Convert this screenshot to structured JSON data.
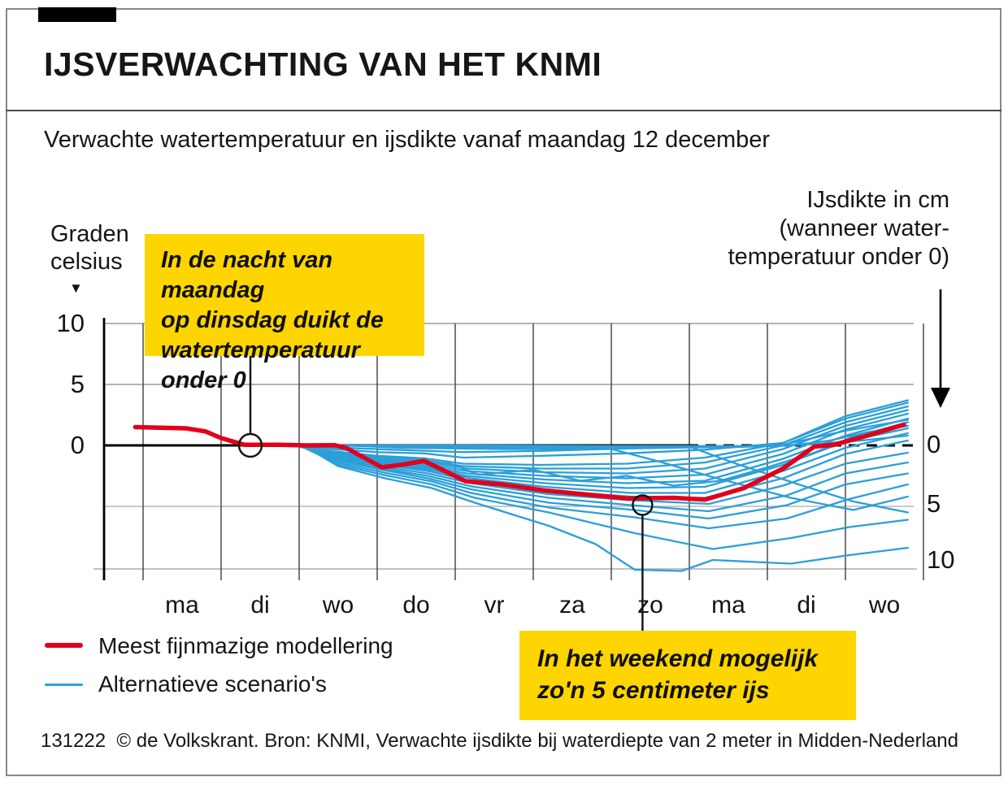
{
  "header": {
    "title": "IJSVERWACHTING VAN HET KNMI"
  },
  "subtitle": "Verwachte watertemperatuur en ijsdikte vanaf maandag 12 december",
  "axis_labels": {
    "left_lines": [
      "Graden",
      "celsius"
    ],
    "left_marker": "▼",
    "right_lines": [
      "IJsdikte in cm",
      "(wanneer water-",
      "temperatuur onder 0)"
    ]
  },
  "annotations": [
    {
      "lines": [
        "In de nacht van maandag",
        "op dinsdag duikt de",
        "watertemperatuur onder 0"
      ]
    },
    {
      "lines": [
        "In het weekend mogelijk",
        "zo'n 5 centimeter ijs"
      ]
    }
  ],
  "legend": [
    {
      "label": "Meest fijnmazige modellering",
      "color": "#e2001a"
    },
    {
      "label": "Alternatieve scenario's",
      "color": "#2b9fd9"
    }
  ],
  "footer": "131222  © de Volkskrant. Bron: KNMI, Verwachte ijsdikte bij waterdiepte van 2 meter in Midden-Nederland",
  "colors": {
    "accent_yellow": "#ffd500",
    "red": "#e2001a",
    "blue": "#2b9fd9"
  },
  "chart_data": {
    "type": "line",
    "x_unit": "dagen vanaf maandag 12 december",
    "day_labels": [
      "ma",
      "di",
      "wo",
      "do",
      "vr",
      "za",
      "zo",
      "ma",
      "di",
      "wo"
    ],
    "y_left_ticks": [
      "10",
      "5",
      "0"
    ],
    "y_right_ticks": [
      "0",
      "5",
      "10"
    ],
    "y_left_unit": "graden celsius boven de nullijn",
    "y_right_unit": "cm ijsdikte onder de nullijn",
    "main_series": {
      "name": "Meest fijnmazige modellering",
      "points": [
        [
          -0.1,
          1.5
        ],
        [
          0.55,
          1.4
        ],
        [
          0.8,
          1.15
        ],
        [
          1.0,
          0.6
        ],
        [
          1.3,
          0.05
        ],
        [
          1.75,
          0.05
        ],
        [
          2.1,
          0.0
        ],
        [
          2.45,
          0.02
        ],
        [
          2.6,
          -0.2
        ],
        [
          3.06,
          -1.8
        ],
        [
          3.35,
          -1.55
        ],
        [
          3.6,
          -1.27
        ],
        [
          4.13,
          -2.93
        ],
        [
          4.6,
          -3.2
        ],
        [
          5.15,
          -3.7
        ],
        [
          5.8,
          -4.1
        ],
        [
          6.2,
          -4.35
        ],
        [
          6.8,
          -4.3
        ],
        [
          7.2,
          -4.45
        ],
        [
          7.7,
          -3.5
        ],
        [
          8.2,
          -1.9
        ],
        [
          8.6,
          -0.1
        ],
        [
          8.85,
          0.05
        ],
        [
          9.25,
          0.75
        ],
        [
          9.75,
          1.7
        ]
      ]
    },
    "scenarios": [
      [
        [
          1.9,
          0
        ],
        [
          4,
          -0.05
        ],
        [
          6,
          -0.1
        ],
        [
          7.5,
          -0.15
        ],
        [
          8.3,
          0
        ],
        [
          8.8,
          0.4
        ],
        [
          9.3,
          1.1
        ],
        [
          9.8,
          1.6
        ]
      ],
      [
        [
          2.0,
          0
        ],
        [
          4,
          0
        ],
        [
          6,
          -0.05
        ],
        [
          8,
          -0.05
        ],
        [
          8.6,
          0.1
        ],
        [
          9.2,
          0.4
        ],
        [
          9.8,
          0.8
        ]
      ],
      [
        [
          1.95,
          0
        ],
        [
          2.4,
          -0.15
        ],
        [
          3.2,
          -0.35
        ],
        [
          4.1,
          -0.55
        ],
        [
          5.1,
          -0.45
        ],
        [
          6.2,
          -0.25
        ],
        [
          7.2,
          -0.15
        ],
        [
          8.2,
          0.05
        ],
        [
          9,
          1.2
        ],
        [
          9.8,
          2.1
        ]
      ],
      [
        [
          1.95,
          0
        ],
        [
          2.3,
          -0.25
        ],
        [
          3,
          -0.55
        ],
        [
          3.6,
          -0.65
        ],
        [
          4.1,
          -1.0
        ],
        [
          5.1,
          -0.85
        ],
        [
          6.2,
          -0.65
        ],
        [
          7.2,
          -0.35
        ],
        [
          8.2,
          0.2
        ],
        [
          9,
          2.4
        ],
        [
          9.8,
          3.7
        ]
      ],
      [
        [
          1.95,
          0
        ],
        [
          2.3,
          -0.4
        ],
        [
          3,
          -0.85
        ],
        [
          3.6,
          -1.05
        ],
        [
          4.1,
          -1.5
        ],
        [
          5.1,
          -1.6
        ],
        [
          6.2,
          -1.5
        ],
        [
          7.2,
          -1.0
        ],
        [
          8.2,
          0.2
        ],
        [
          9,
          2.2
        ],
        [
          9.8,
          3.5
        ]
      ],
      [
        [
          1.95,
          0
        ],
        [
          2.3,
          -0.45
        ],
        [
          3,
          -0.95
        ],
        [
          3.6,
          -1.2
        ],
        [
          4.1,
          -1.7
        ],
        [
          5.1,
          -1.9
        ],
        [
          6.2,
          -1.9
        ],
        [
          7.2,
          -1.4
        ],
        [
          8.2,
          0.0
        ],
        [
          9,
          1.9
        ],
        [
          9.8,
          3.2
        ]
      ],
      [
        [
          1.95,
          0
        ],
        [
          2.3,
          -0.5
        ],
        [
          3,
          -1.05
        ],
        [
          3.6,
          -1.35
        ],
        [
          4.15,
          -1.9
        ],
        [
          5.15,
          -2.2
        ],
        [
          6.2,
          -2.3
        ],
        [
          7.2,
          -1.9
        ],
        [
          8.2,
          -0.3
        ],
        [
          9,
          1.6
        ],
        [
          9.8,
          2.9
        ]
      ],
      [
        [
          1.95,
          0
        ],
        [
          2.3,
          -0.55
        ],
        [
          3,
          -1.15
        ],
        [
          3.6,
          -1.5
        ],
        [
          4.15,
          -2.1
        ],
        [
          5.15,
          -2.5
        ],
        [
          6.2,
          -2.7
        ],
        [
          7.2,
          -2.4
        ],
        [
          8.2,
          -0.7
        ],
        [
          9,
          1.3
        ],
        [
          9.8,
          2.6
        ]
      ],
      [
        [
          1.95,
          0
        ],
        [
          2.35,
          -0.65
        ],
        [
          3,
          -1.25
        ],
        [
          3.6,
          -1.65
        ],
        [
          4.15,
          -2.3
        ],
        [
          5.15,
          -2.8
        ],
        [
          6.2,
          -3.1
        ],
        [
          7.2,
          -2.9
        ],
        [
          8.2,
          -1.1
        ],
        [
          9,
          0.8
        ],
        [
          9.8,
          2.2
        ]
      ],
      [
        [
          1.95,
          0
        ],
        [
          2.35,
          -0.7
        ],
        [
          3,
          -1.35
        ],
        [
          3.65,
          -1.8
        ],
        [
          4.15,
          -2.5
        ],
        [
          5.15,
          -3.1
        ],
        [
          6.2,
          -3.5
        ],
        [
          7.2,
          -3.4
        ],
        [
          8.2,
          -1.6
        ],
        [
          9,
          0.3
        ],
        [
          9.8,
          1.4
        ]
      ],
      [
        [
          2.0,
          0
        ],
        [
          2.4,
          -0.8
        ],
        [
          3.05,
          -1.45
        ],
        [
          3.65,
          -1.95
        ],
        [
          4.2,
          -2.7
        ],
        [
          5.15,
          -3.4
        ],
        [
          6.25,
          -3.9
        ],
        [
          7.2,
          -3.9
        ],
        [
          8.2,
          -2.1
        ],
        [
          9,
          -0.2
        ],
        [
          9.8,
          1.0
        ]
      ],
      [
        [
          2.0,
          0
        ],
        [
          2.4,
          -0.9
        ],
        [
          3.05,
          -1.6
        ],
        [
          3.65,
          -2.1
        ],
        [
          4.2,
          -2.9
        ],
        [
          5.15,
          -3.7
        ],
        [
          6.25,
          -4.2
        ],
        [
          7.2,
          -4.3
        ],
        [
          8.2,
          -2.7
        ],
        [
          9,
          -0.7
        ],
        [
          9.8,
          0.4
        ]
      ],
      [
        [
          2.0,
          0
        ],
        [
          2.4,
          -1.0
        ],
        [
          3.05,
          -1.75
        ],
        [
          3.65,
          -2.3
        ],
        [
          4.2,
          -3.1
        ],
        [
          5.2,
          -4.0
        ],
        [
          6.25,
          -4.5
        ],
        [
          7.25,
          -4.8
        ],
        [
          8.2,
          -3.3
        ],
        [
          9,
          -1.5
        ],
        [
          9.8,
          -0.6
        ]
      ],
      [
        [
          2.0,
          0
        ],
        [
          2.4,
          -1.1
        ],
        [
          3.05,
          -1.9
        ],
        [
          3.65,
          -2.5
        ],
        [
          4.2,
          -3.35
        ],
        [
          5.2,
          -4.3
        ],
        [
          6.25,
          -4.9
        ],
        [
          7.25,
          -5.4
        ],
        [
          8.25,
          -4.1
        ],
        [
          9,
          -2.3
        ],
        [
          9.8,
          -1.4
        ]
      ],
      [
        [
          2.0,
          0
        ],
        [
          2.45,
          -1.2
        ],
        [
          3.1,
          -2.05
        ],
        [
          3.65,
          -2.7
        ],
        [
          4.2,
          -3.6
        ],
        [
          5.2,
          -4.7
        ],
        [
          6.3,
          -5.3
        ],
        [
          7.25,
          -6.0
        ],
        [
          8.25,
          -4.9
        ],
        [
          9,
          -3.2
        ],
        [
          9.8,
          -2.3
        ]
      ],
      [
        [
          2.0,
          0
        ],
        [
          2.45,
          -1.35
        ],
        [
          3.1,
          -2.25
        ],
        [
          3.7,
          -2.95
        ],
        [
          4.2,
          -3.9
        ],
        [
          5.2,
          -5.1
        ],
        [
          6.3,
          -5.9
        ],
        [
          7.25,
          -6.8
        ],
        [
          8.25,
          -6.0
        ],
        [
          9.05,
          -4.4
        ],
        [
          9.8,
          -3.2
        ]
      ],
      [
        [
          2.05,
          0
        ],
        [
          2.45,
          -1.5
        ],
        [
          3.1,
          -2.45
        ],
        [
          3.7,
          -3.2
        ],
        [
          4.25,
          -4.3
        ],
        [
          5.2,
          -5.5
        ],
        [
          6.3,
          -7.2
        ],
        [
          7.3,
          -8.5
        ],
        [
          8.3,
          -7.6
        ],
        [
          9.05,
          -6.7
        ],
        [
          9.8,
          -6.1
        ]
      ],
      [
        [
          2.05,
          0
        ],
        [
          2.5,
          -1.7
        ],
        [
          3.1,
          -2.7
        ],
        [
          3.7,
          -3.5
        ],
        [
          4.25,
          -4.7
        ],
        [
          5.2,
          -6.6
        ],
        [
          5.8,
          -8.1
        ],
        [
          6.3,
          -10.2
        ],
        [
          6.9,
          -10.3
        ],
        [
          7.3,
          -9.4
        ],
        [
          8.3,
          -9.7
        ],
        [
          9.05,
          -9.0
        ],
        [
          9.8,
          -8.4
        ]
      ],
      [
        [
          2.6,
          0
        ],
        [
          3.3,
          -0.2
        ],
        [
          4.6,
          -0.3
        ],
        [
          6.0,
          -0.3
        ],
        [
          6.6,
          -1.3
        ],
        [
          7.3,
          -2.6
        ],
        [
          8.3,
          -4.3
        ],
        [
          9.1,
          -5.3
        ],
        [
          9.8,
          -4.2
        ]
      ],
      [
        [
          2.2,
          0
        ],
        [
          4,
          -0.15
        ],
        [
          6.35,
          -0.2
        ],
        [
          7.0,
          -0.1
        ],
        [
          7.6,
          -1.5
        ],
        [
          8.4,
          -3.2
        ],
        [
          9.1,
          -4.6
        ],
        [
          9.8,
          -5.5
        ]
      ],
      [
        [
          1.95,
          0
        ],
        [
          2.3,
          -0.6
        ],
        [
          2.7,
          -1.3
        ],
        [
          3.1,
          -0.9
        ],
        [
          3.5,
          -1.8
        ],
        [
          3.9,
          -1.4
        ],
        [
          4.3,
          -2.4
        ],
        [
          5.0,
          -2.0
        ],
        [
          5.6,
          -2.9
        ],
        [
          6.2,
          -2.5
        ],
        [
          6.8,
          -3.3
        ],
        [
          7.4,
          -2.9
        ],
        [
          8.0,
          -1.8
        ],
        [
          8.6,
          -0.6
        ],
        [
          9.1,
          0.7
        ],
        [
          9.8,
          1.9
        ]
      ]
    ],
    "markers": [
      {
        "t": 1.375,
        "v": 0,
        "annotation_index": 0
      },
      {
        "t": 6.4,
        "v": -4.9,
        "annotation_index": 1
      }
    ]
  }
}
